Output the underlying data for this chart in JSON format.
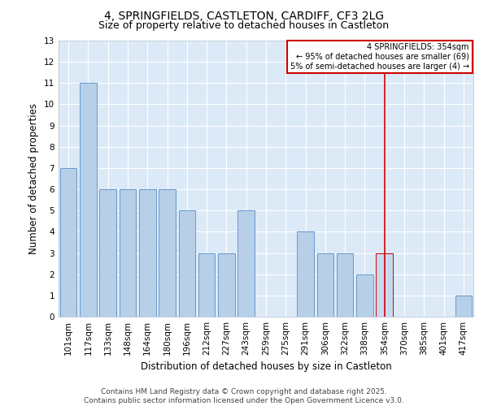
{
  "title": "4, SPRINGFIELDS, CASTLETON, CARDIFF, CF3 2LG",
  "subtitle": "Size of property relative to detached houses in Castleton",
  "xlabel": "Distribution of detached houses by size in Castleton",
  "ylabel": "Number of detached properties",
  "categories": [
    "101sqm",
    "117sqm",
    "133sqm",
    "148sqm",
    "164sqm",
    "180sqm",
    "196sqm",
    "212sqm",
    "227sqm",
    "243sqm",
    "259sqm",
    "275sqm",
    "291sqm",
    "306sqm",
    "322sqm",
    "338sqm",
    "354sqm",
    "370sqm",
    "385sqm",
    "401sqm",
    "417sqm"
  ],
  "values": [
    7,
    11,
    6,
    6,
    6,
    6,
    5,
    3,
    3,
    5,
    0,
    0,
    4,
    3,
    3,
    2,
    3,
    0,
    0,
    0,
    1
  ],
  "bar_color": "#b8cfe8",
  "bar_edgecolor": "#6699cc",
  "highlight_bar_index": 16,
  "highlight_bar_color": "#c8daf0",
  "highlight_bar_edgecolor": "#cc0000",
  "vline_x": 16,
  "vline_color": "#cc0000",
  "ylim": [
    0,
    13
  ],
  "yticks": [
    0,
    1,
    2,
    3,
    4,
    5,
    6,
    7,
    8,
    9,
    10,
    11,
    12,
    13
  ],
  "legend_title": "4 SPRINGFIELDS: 354sqm",
  "legend_line1": "← 95% of detached houses are smaller (69)",
  "legend_line2": "5% of semi-detached houses are larger (4) →",
  "legend_box_color": "#cc0000",
  "bg_color": "#dce9f7",
  "footer_line1": "Contains HM Land Registry data © Crown copyright and database right 2025.",
  "footer_line2": "Contains public sector information licensed under the Open Government Licence v3.0.",
  "title_fontsize": 10,
  "subtitle_fontsize": 9,
  "axis_label_fontsize": 8.5,
  "tick_fontsize": 7.5,
  "footer_fontsize": 6.5
}
